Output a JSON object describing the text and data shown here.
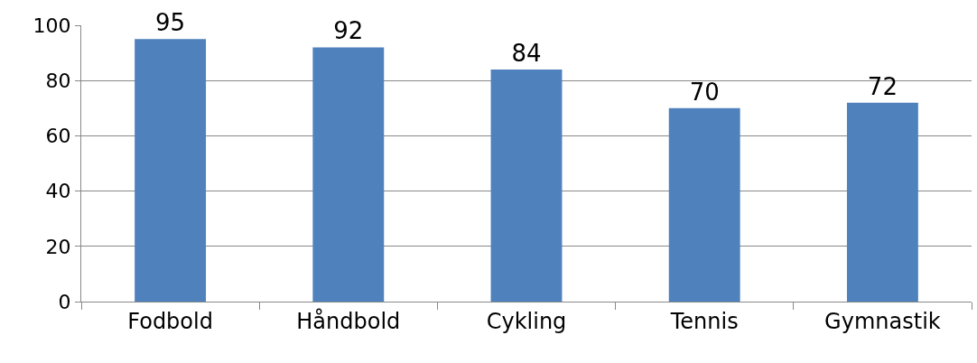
{
  "chart_data": {
    "type": "bar",
    "categories": [
      "Fodbold",
      "Håndbold",
      "Cykling",
      "Tennis",
      "Gymnastik"
    ],
    "values": [
      95,
      92,
      84,
      70,
      72
    ],
    "color": "#4f81bd",
    "ylim": [
      0,
      100
    ],
    "yticks": [
      0,
      20,
      40,
      60,
      80,
      100
    ],
    "grid": "y",
    "data_labels": true,
    "legend": false
  }
}
